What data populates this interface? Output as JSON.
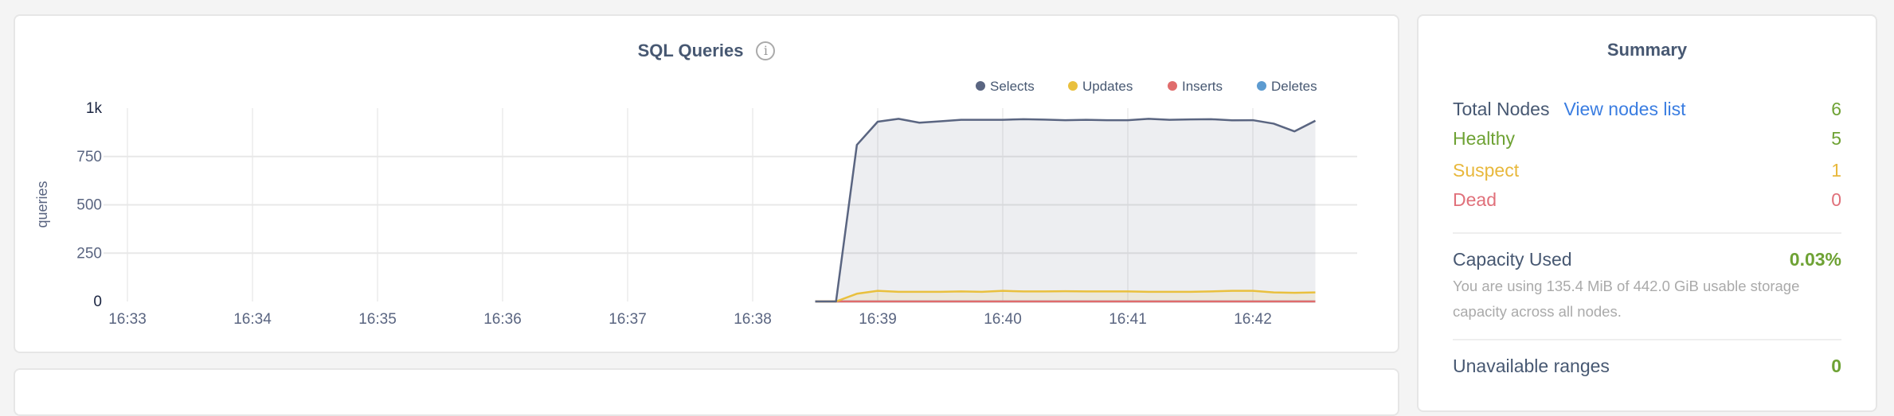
{
  "chart_card": {
    "title": "SQL Queries",
    "info_icon": "info-circle-icon",
    "chart_data": {
      "type": "area",
      "title": "SQL Queries",
      "ylabel": "queries",
      "xlabel": "",
      "ylim": [
        0,
        1000
      ],
      "yticks": [
        "0",
        "250",
        "500",
        "750",
        "1k"
      ],
      "yticks_values": [
        0,
        250,
        500,
        750,
        1000
      ],
      "xticks": [
        "16:33",
        "16:34",
        "16:35",
        "16:36",
        "16:37",
        "16:38",
        "16:39",
        "16:40",
        "16:41",
        "16:42"
      ],
      "xlim": [
        "16:33:00",
        "16:43:00"
      ],
      "grid": true,
      "legend_position": "top-right",
      "x": [
        "16:38:30",
        "16:38:40",
        "16:38:50",
        "16:39:00",
        "16:39:10",
        "16:39:20",
        "16:39:30",
        "16:39:40",
        "16:39:50",
        "16:40:00",
        "16:40:10",
        "16:40:20",
        "16:40:30",
        "16:40:40",
        "16:40:50",
        "16:41:00",
        "16:41:10",
        "16:41:20",
        "16:41:30",
        "16:41:40",
        "16:41:50",
        "16:42:00",
        "16:42:10",
        "16:42:20",
        "16:42:30"
      ],
      "series": [
        {
          "name": "Selects",
          "color": "#5a6581",
          "values": [
            0,
            0,
            810,
            930,
            945,
            925,
            932,
            940,
            940,
            940,
            943,
            941,
            938,
            940,
            938,
            938,
            945,
            940,
            942,
            943,
            937,
            938,
            920,
            880,
            935
          ]
        },
        {
          "name": "Updates",
          "color": "#e9c03e",
          "values": [
            0,
            0,
            40,
            55,
            50,
            50,
            50,
            52,
            50,
            55,
            52,
            52,
            53,
            52,
            52,
            52,
            50,
            50,
            50,
            52,
            55,
            55,
            47,
            45,
            47
          ]
        },
        {
          "name": "Inserts",
          "color": "#e06c6c",
          "values": [
            0,
            0,
            0,
            0,
            0,
            0,
            0,
            0,
            0,
            0,
            0,
            0,
            0,
            0,
            0,
            0,
            0,
            0,
            0,
            0,
            0,
            0,
            0,
            0,
            0
          ]
        },
        {
          "name": "Deletes",
          "color": "#5d9bd0",
          "values": [
            0,
            0,
            0,
            0,
            0,
            0,
            0,
            0,
            0,
            0,
            0,
            0,
            0,
            0,
            0,
            0,
            0,
            0,
            0,
            0,
            0,
            0,
            0,
            0,
            0
          ]
        }
      ]
    }
  },
  "summary": {
    "title": "Summary",
    "total_nodes_label": "Total Nodes",
    "view_nodes_link": "View nodes list",
    "total_nodes_value": "6",
    "healthy_label": "Healthy",
    "healthy_value": "5",
    "suspect_label": "Suspect",
    "suspect_value": "1",
    "dead_label": "Dead",
    "dead_value": "0",
    "capacity_label": "Capacity Used",
    "capacity_value": "0.03%",
    "capacity_description": "You are using 135.4 MiB of 442.0 GiB usable storage capacity across all nodes.",
    "unavailable_label": "Unavailable ranges",
    "unavailable_value": "0",
    "colors": {
      "healthy": "#6ea234",
      "suspect": "#e8b83c",
      "dead": "#e0707a",
      "link": "#3a7de1"
    }
  }
}
